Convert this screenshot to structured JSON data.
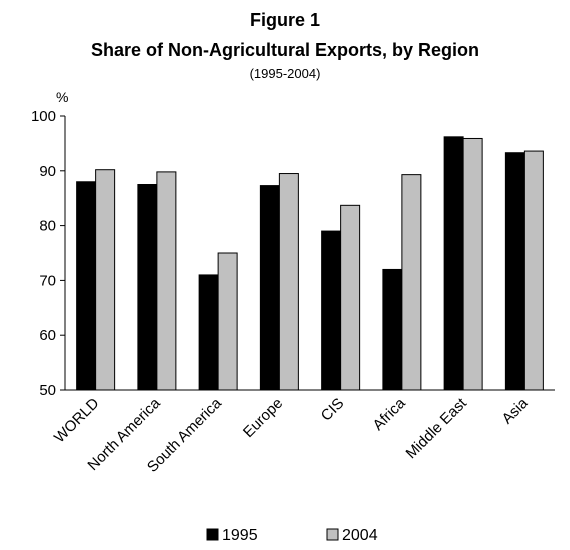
{
  "chart_data": {
    "type": "bar",
    "title": "Figure 1",
    "subtitle": "Share of Non-Agricultural Exports, by Region",
    "period": "(1995-2004)",
    "ylabel": "%",
    "xlabel": "",
    "ylim": [
      50,
      100
    ],
    "yticks": [
      50,
      60,
      70,
      80,
      90,
      100
    ],
    "grid": false,
    "legend_position": "bottom",
    "categories": [
      "WORLD",
      "North America",
      "South America",
      "Europe",
      "CIS",
      "Africa",
      "Middle East",
      "Asia"
    ],
    "series": [
      {
        "name": "1995",
        "color": "#000000",
        "values": [
          88,
          87.5,
          71,
          87.3,
          79,
          72,
          96.2,
          93.3
        ]
      },
      {
        "name": "2004",
        "color": "#c0c0c0",
        "values": [
          90.2,
          89.8,
          75,
          89.5,
          83.7,
          89.3,
          95.9,
          93.6
        ]
      }
    ]
  }
}
